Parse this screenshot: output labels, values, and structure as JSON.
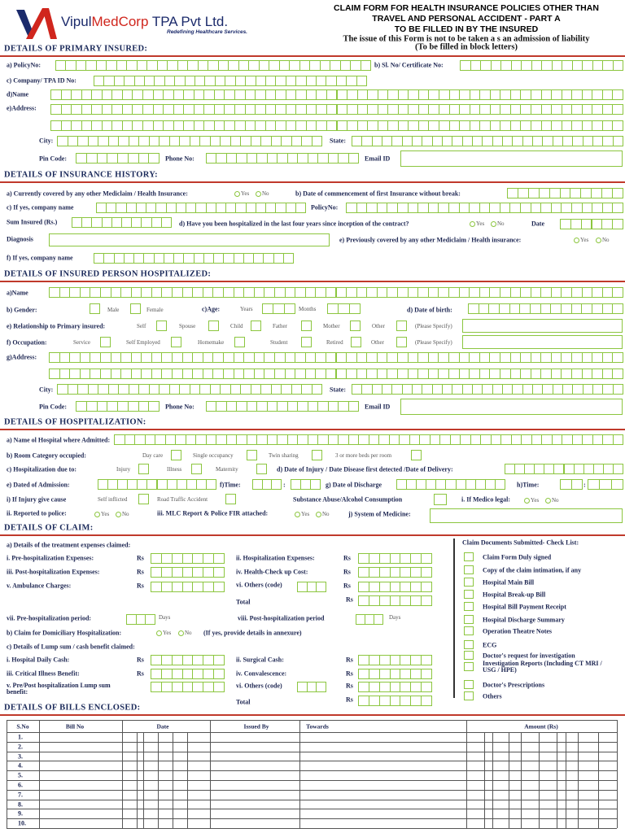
{
  "header": {
    "brand_parts": [
      "Vipul",
      "MedCorp",
      "TPA Pvt Ltd."
    ],
    "tagline": "Redefining Healthcare Services.",
    "title_lines": [
      "CLAIM FORM FOR HEALTH INSURANCE POLICIES OTHER THAN",
      "TRAVEL AND PERSONAL ACCIDENT - PART A",
      "TO BE FILLED IN BY THE INSURED"
    ],
    "note": "The issue of this Form is not to be taken a s an admission of liability",
    "instruction": "(To be filled in block letters)"
  },
  "sections": [
    {
      "heading": "DETAILS OF PRIMARY INSURED:",
      "labels": [
        "a) PolicyNo:",
        "b) Sl. No/ Certificate No:",
        "c) Company/ TPA ID No:",
        "d)Name",
        "e)Address:",
        "City:",
        "State:",
        "Pin Code:",
        "Phone No:",
        "Email ID"
      ]
    },
    {
      "heading": "DETAILS OF INSURANCE HISTORY:",
      "labels": [
        "a) Currently covered by any other Mediclaim / Health Insurance:",
        "Yes",
        "No",
        "b) Date of commencement of first Insurance without break:",
        "c) If yes, company name",
        "PolicyNo:",
        "Sum Insured (Rs.)",
        "d) Have you been hospitalized in the last four years since inception of the contract?",
        "Yes",
        "No",
        "Date",
        "Diagnosis",
        "e) Previously covered by any other Mediclaim / Health insurance:",
        "Yes",
        "No",
        "f) If yes, company name"
      ]
    },
    {
      "heading": "DETAILS OF INSURED PERSON HOSPITALIZED:",
      "labels": [
        "a)Name",
        "b) Gender:",
        "Male",
        "Female",
        "c)Age:",
        "Years",
        "Months",
        "d) Date of birth:",
        "e) Relationship to Primary insured:",
        "Self",
        "Spouse",
        "Child",
        "Father",
        "Mother",
        "Other",
        "(Please Specify)",
        "f) Occupation:",
        "Service",
        "Self Employed",
        "Homemake",
        "Student",
        "Retired",
        "Other",
        "(Please Specify)",
        "g)Address:",
        "City:",
        "State:",
        "Pin Code:",
        "Phone No:",
        "Email ID"
      ]
    },
    {
      "heading": "DETAILS OF HOSPITALIZATION:",
      "labels": [
        "a) Name ol Hospital where Admitted:",
        "b) Room Category occupied:",
        "Day care",
        "Single occupancy",
        "Twin sharing",
        "3 or more beds per room",
        "c) Hospitalization due to:",
        "Injury",
        "Illness",
        "Maternity",
        "d) Date of Injury / Date Disease first detected /Date of Delivery:",
        "e) Dated of Admission:",
        "f)Time:",
        ":",
        "g) Date ol Discharge",
        "h)Time:",
        ":",
        "i) If Injury give cause",
        "Self inflicted",
        "Road Traffic Accident",
        "Substance Abuse/Alcohol Consumption",
        "i. If Medico legal:",
        "Yes",
        "No",
        "ii. Reported to police:",
        "Yes",
        "No",
        "iii. MLC Report & Police FIR attached:",
        "Yes",
        "No",
        "j) System of Medicine:"
      ]
    },
    {
      "heading": "DETAILS OF CLAIM:",
      "labels": [
        "a) Details of the treatment expenses claimed:",
        "i. Pre-hospitalization Expenses:",
        "Rs",
        "ii. Hospitalization Expenses:",
        "Rs",
        "iii. Post-hospitalization Expenses:",
        "Rs",
        "iv. Health-Check up Cost:",
        "Rs",
        "v. Ambulance Charges:",
        "Rs",
        "vi. Others (code)",
        "Rs",
        "Total",
        "Rs",
        "vii. Pre-hospitalization period:",
        "Days",
        "viii. Post-hospitalization period",
        "Days",
        "b) Claim for Domiciliary Hospitalization:",
        "Yes",
        "No",
        "(If yes, provide details in annexure)",
        "c) Details of Lump sum / cash benefit claimed:",
        "i. Hospital Daily Cash:",
        "Rs",
        "ii. Surgical Cash:",
        "Rs",
        "iii. Critical Illness Benefit:",
        "Rs",
        "iv. Convalescence:",
        "Rs",
        "v. Pre/Post hospitalization Lump sum benefit:",
        "vi. Others (code)",
        "Rs",
        "Total",
        "Rs"
      ]
    },
    {
      "heading": "DETAILS OF BILLS ENCLOSED:",
      "labels": []
    }
  ],
  "checklist": {
    "title": "Claim Documents Submitted- Check List:",
    "items": [
      "Claim Form Duly signed",
      "Copy of the claim intimation, if any",
      "Hospital Main Bill",
      "Hospital Break-up Bill",
      "Hospital Bill Payment Receipt",
      "Hospital Discharge Summary",
      "Operation Theatre Notes",
      "ECG",
      "Doctor's request for investigation",
      "Investigation Reports (Including CT MRI / USG / HPE)",
      "Doctor's Prescriptions",
      "Others"
    ]
  },
  "bills_table": {
    "headers": [
      "S.No",
      "Bill No",
      "Date",
      "Issued By",
      "Towards",
      "Amount (Rs)"
    ],
    "rows": [
      "1.",
      "2.",
      "3.",
      "4.",
      "5.",
      "6.",
      "7.",
      "8.",
      "9.",
      "10."
    ]
  }
}
